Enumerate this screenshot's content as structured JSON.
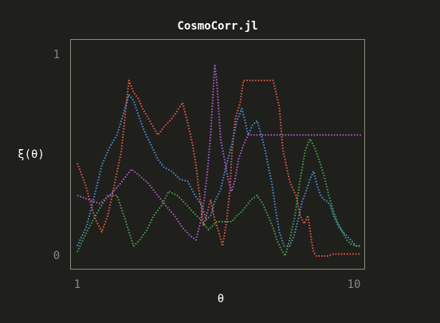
{
  "chart_data": {
    "type": "line",
    "title": "CosmoCorr.jl",
    "xlabel": "θ",
    "ylabel": "ξ(θ)",
    "xscale": "log",
    "xlim": [
      1,
      10
    ],
    "ylim": [
      0,
      1
    ],
    "x_ticks": [
      "1",
      "10"
    ],
    "y_ticks": [
      "0",
      "1"
    ],
    "grid": false,
    "legend": "none",
    "background_color": "#1f1f1c",
    "frame_color": "#8a8a80",
    "series": [
      {
        "color": "#e05a44",
        "x": [
          1.0,
          1.07,
          1.12,
          1.16,
          1.22,
          1.28,
          1.35,
          1.43,
          1.48,
          1.52,
          1.58,
          1.64,
          1.7,
          1.8,
          1.92,
          2.02,
          2.15,
          2.25,
          2.35,
          2.45,
          2.55,
          2.62,
          2.68,
          2.73,
          2.78,
          2.85,
          2.95,
          3.05,
          3.15,
          3.25,
          3.35,
          3.45,
          3.5,
          3.6,
          3.75,
          3.85,
          4.0,
          4.2,
          4.4,
          4.6,
          4.9,
          5.15,
          5.3,
          5.6,
          5.9,
          6.1,
          6.3,
          6.5,
          6.7,
          6.8,
          6.95,
          7.2,
          7.6,
          8.0,
          8.4,
          8.8,
          9.2,
          9.5,
          9.8,
          10.0
        ],
        "y": [
          0.46,
          0.35,
          0.25,
          0.18,
          0.12,
          0.2,
          0.35,
          0.52,
          0.72,
          0.87,
          0.81,
          0.78,
          0.73,
          0.67,
          0.6,
          0.64,
          0.68,
          0.72,
          0.76,
          0.66,
          0.55,
          0.45,
          0.33,
          0.25,
          0.15,
          0.2,
          0.28,
          0.18,
          0.12,
          0.05,
          0.16,
          0.33,
          0.5,
          0.68,
          0.76,
          0.87,
          0.87,
          0.87,
          0.87,
          0.87,
          0.87,
          0.74,
          0.53,
          0.37,
          0.3,
          0.2,
          0.16,
          0.2,
          0.07,
          0.02,
          0.0,
          0.0,
          0.0,
          0.01,
          0.01,
          0.01,
          0.01,
          0.01,
          0.01,
          0.01
        ]
      },
      {
        "color": "#4a8fd0",
        "x": [
          1.0,
          1.08,
          1.16,
          1.22,
          1.3,
          1.38,
          1.45,
          1.52,
          1.58,
          1.64,
          1.72,
          1.82,
          1.92,
          2.02,
          2.15,
          2.3,
          2.45,
          2.6,
          2.75,
          2.85,
          2.95,
          3.05,
          3.2,
          3.35,
          3.5,
          3.65,
          3.8,
          3.9,
          4.0,
          4.15,
          4.3,
          4.45,
          4.6,
          4.7,
          4.85,
          5.0,
          5.15,
          5.35,
          5.6,
          5.8,
          6.0,
          6.2,
          6.4,
          6.6,
          6.8,
          7.0,
          7.2,
          7.4,
          7.6,
          7.8,
          8.0,
          8.3,
          8.6,
          8.9,
          9.2,
          9.6,
          10.0
        ],
        "y": [
          0.05,
          0.15,
          0.32,
          0.45,
          0.54,
          0.6,
          0.7,
          0.8,
          0.77,
          0.7,
          0.62,
          0.55,
          0.48,
          0.44,
          0.42,
          0.38,
          0.37,
          0.3,
          0.25,
          0.18,
          0.2,
          0.27,
          0.33,
          0.45,
          0.55,
          0.67,
          0.73,
          0.67,
          0.6,
          0.65,
          0.67,
          0.6,
          0.52,
          0.45,
          0.36,
          0.23,
          0.12,
          0.05,
          0.05,
          0.1,
          0.18,
          0.27,
          0.32,
          0.38,
          0.42,
          0.35,
          0.3,
          0.28,
          0.27,
          0.25,
          0.2,
          0.15,
          0.12,
          0.1,
          0.08,
          0.05,
          0.05
        ]
      },
      {
        "color": "#4a9e4a",
        "x": [
          1.0,
          1.08,
          1.18,
          1.28,
          1.38,
          1.46,
          1.52,
          1.58,
          1.66,
          1.76,
          1.86,
          1.98,
          2.1,
          2.25,
          2.4,
          2.55,
          2.72,
          2.9,
          3.1,
          3.3,
          3.5,
          3.65,
          3.8,
          3.95,
          4.1,
          4.3,
          4.5,
          4.7,
          4.9,
          5.05,
          5.2,
          5.4,
          5.6,
          5.85,
          6.1,
          6.35,
          6.6,
          6.85,
          7.1,
          7.4,
          7.7,
          8.0,
          8.3,
          8.6,
          8.9,
          9.2,
          9.6,
          10.0
        ],
        "y": [
          0.02,
          0.12,
          0.22,
          0.3,
          0.3,
          0.2,
          0.12,
          0.05,
          0.08,
          0.13,
          0.2,
          0.25,
          0.32,
          0.3,
          0.26,
          0.22,
          0.18,
          0.13,
          0.17,
          0.17,
          0.17,
          0.2,
          0.22,
          0.25,
          0.28,
          0.3,
          0.26,
          0.2,
          0.14,
          0.08,
          0.04,
          0.0,
          0.08,
          0.2,
          0.38,
          0.52,
          0.58,
          0.54,
          0.48,
          0.4,
          0.3,
          0.22,
          0.16,
          0.12,
          0.08,
          0.06,
          0.05,
          0.05
        ]
      },
      {
        "color": "#a85fc8",
        "x": [
          1.0,
          1.1,
          1.2,
          1.3,
          1.42,
          1.55,
          1.65,
          1.78,
          1.92,
          2.05,
          2.2,
          2.35,
          2.5,
          2.62,
          2.72,
          2.8,
          2.88,
          2.95,
          3.0,
          3.05,
          3.1,
          3.15,
          3.2,
          3.3,
          3.4,
          3.5,
          3.6,
          3.7,
          3.85,
          4.0,
          4.2,
          4.4,
          4.6,
          4.8,
          5.0,
          5.2,
          5.4,
          5.6,
          5.8,
          6.0,
          6.2,
          6.4,
          6.6,
          6.8,
          7.0,
          7.2,
          7.4,
          7.6,
          7.8,
          8.0,
          8.2,
          8.5,
          8.8,
          9.2,
          9.6,
          10.0
        ],
        "y": [
          0.3,
          0.28,
          0.26,
          0.3,
          0.36,
          0.43,
          0.4,
          0.36,
          0.3,
          0.25,
          0.2,
          0.14,
          0.1,
          0.08,
          0.17,
          0.28,
          0.43,
          0.6,
          0.78,
          0.95,
          0.87,
          0.72,
          0.58,
          0.48,
          0.38,
          0.32,
          0.38,
          0.48,
          0.55,
          0.6,
          0.6,
          0.6,
          0.6,
          0.6,
          0.6,
          0.6,
          0.6,
          0.6,
          0.6,
          0.6,
          0.6,
          0.6,
          0.6,
          0.6,
          0.6,
          0.6,
          0.6,
          0.6,
          0.6,
          0.6,
          0.6,
          0.6,
          0.6,
          0.6,
          0.6,
          0.6
        ]
      }
    ]
  }
}
